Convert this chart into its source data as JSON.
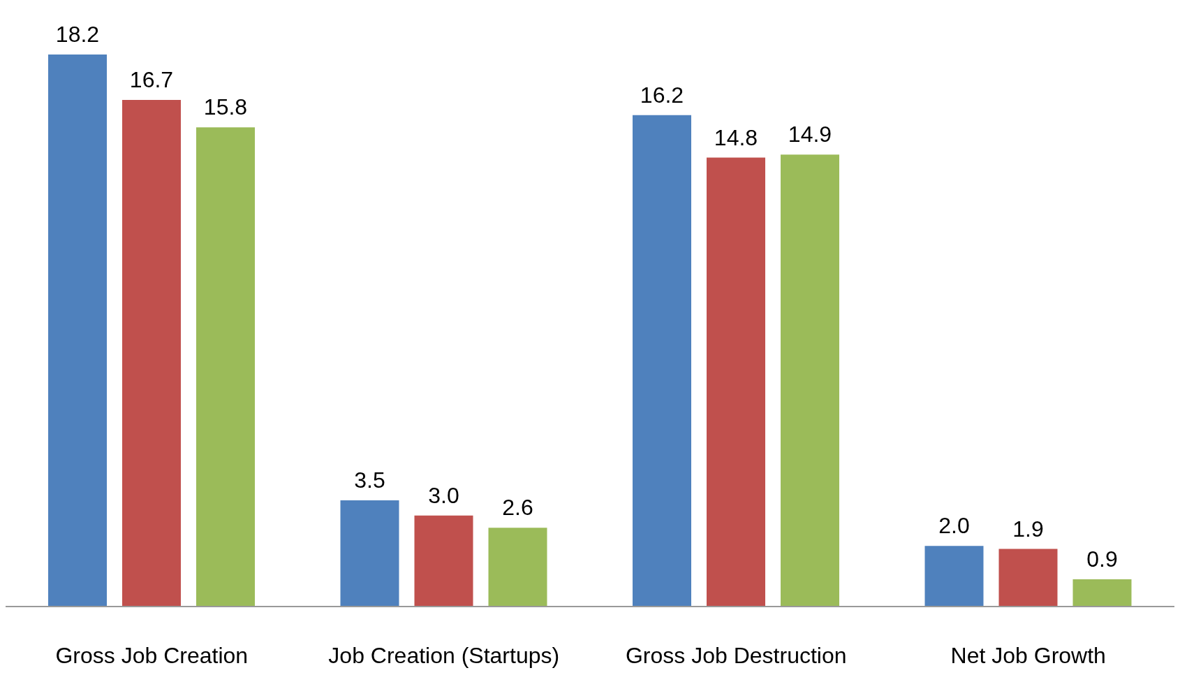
{
  "chart_data": {
    "type": "bar",
    "categories": [
      "Gross Job Creation",
      "Job Creation  (Startups)",
      "Gross Job Destruction",
      "Net Job Growth"
    ],
    "series": [
      {
        "color": "#4f81bd",
        "values": [
          18.2,
          3.5,
          16.2,
          2.0
        ],
        "value_labels": [
          "18.2",
          "3.5",
          "16.2",
          "2.0"
        ]
      },
      {
        "color": "#c0504d",
        "values": [
          16.7,
          3.0,
          14.8,
          1.9
        ],
        "value_labels": [
          "16.7",
          "3.0",
          "14.8",
          "1.9"
        ]
      },
      {
        "color": "#9bbb59",
        "values": [
          15.8,
          2.6,
          14.9,
          0.9
        ],
        "value_labels": [
          "15.8",
          "2.6",
          "14.9",
          "0.9"
        ]
      }
    ],
    "grid": false,
    "legend": false
  }
}
